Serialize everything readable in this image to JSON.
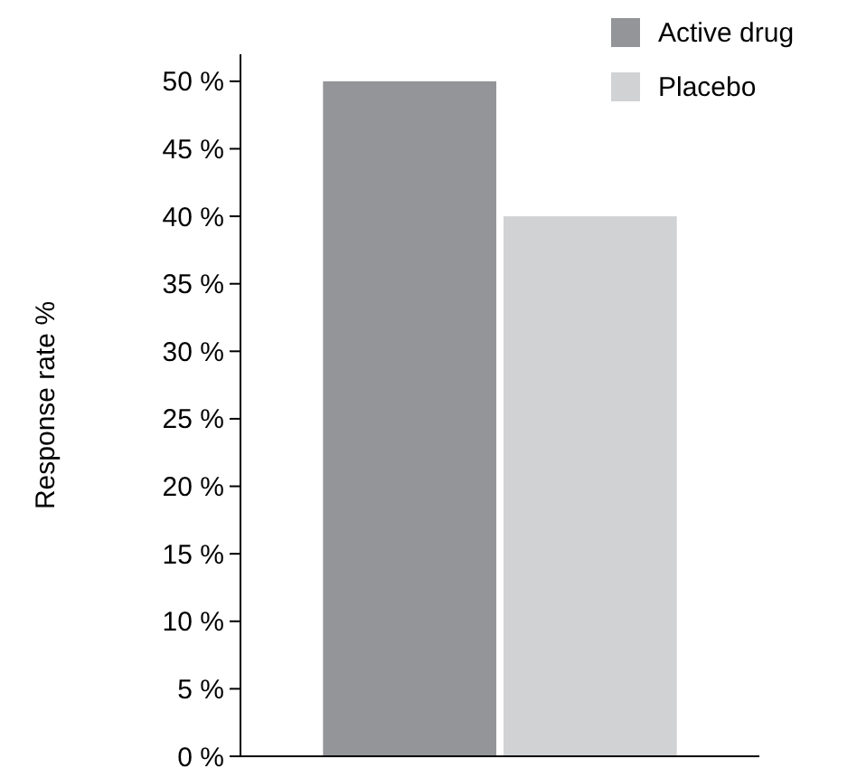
{
  "chart_data": {
    "type": "bar",
    "ylabel": "Response rate %",
    "categories": [
      null
    ],
    "series": [
      {
        "name": "Active drug",
        "color": "#939598",
        "values": [
          50
        ]
      },
      {
        "name": "Placebo",
        "color": "#d1d2d4",
        "values": [
          40
        ]
      }
    ],
    "ylim": [
      0,
      52
    ],
    "yticks": [
      {
        "value": 0,
        "label": "0 %"
      },
      {
        "value": 5,
        "label": "5 %"
      },
      {
        "value": 10,
        "label": "10 %"
      },
      {
        "value": 15,
        "label": "15 %"
      },
      {
        "value": 20,
        "label": "20 %"
      },
      {
        "value": 25,
        "label": "25 %"
      },
      {
        "value": 30,
        "label": "30 %"
      },
      {
        "value": 35,
        "label": "35 %"
      },
      {
        "value": 40,
        "label": "40 %"
      },
      {
        "value": 45,
        "label": "45 %"
      },
      {
        "value": 50,
        "label": "50 %"
      }
    ],
    "grid": false,
    "legend": "top right"
  }
}
